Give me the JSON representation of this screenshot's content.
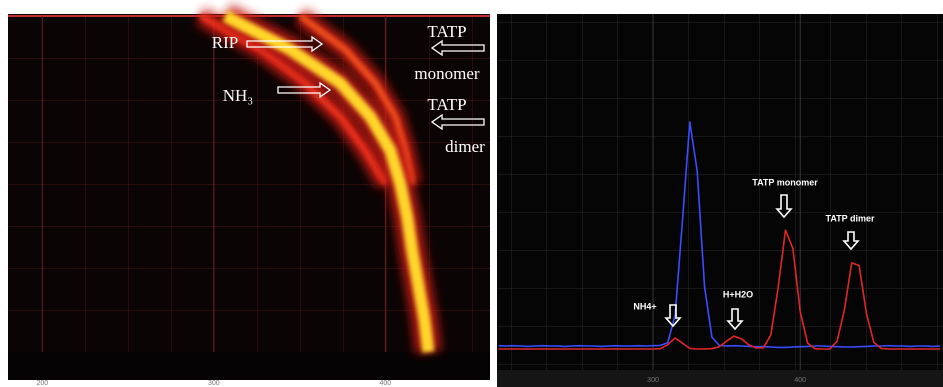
{
  "chart_data": [
    {
      "type": "heatmap",
      "xlim": [
        180,
        461
      ],
      "ylim": [
        0,
        100
      ],
      "xticks": [
        200,
        300,
        400
      ],
      "grid": true,
      "y": [
        0,
        10,
        20,
        30,
        40,
        50,
        60,
        70,
        80,
        90,
        100
      ],
      "series": [
        {
          "color": "#e8301c",
          "x": [
            292.1,
            327.1,
            353.4,
            373.8,
            388.3,
            400.0,
            null,
            null,
            null,
            null,
            null
          ]
        },
        {
          "color": "#f0501c",
          "x": [
            350.4,
            376.7,
            394.2,
            405.8,
            411.7,
            415.7,
            null,
            null,
            null,
            null,
            null
          ]
        },
        {
          "color": "#ffd62a",
          "x": [
            306.7,
            344.6,
            373.8,
            391.3,
            402.9,
            408.7,
            412.8,
            415.7,
            419.2,
            422.7,
            425.1
          ]
        }
      ],
      "annotations": [
        "RIP",
        "NH₃",
        "TATP",
        "monomer",
        "TATP",
        "dimer"
      ]
    },
    {
      "type": "line",
      "xlim": [
        194,
        497
      ],
      "ylim": [
        0,
        100
      ],
      "xticks": [
        300,
        400
      ],
      "grid": true,
      "x": [
        195,
        200,
        205,
        210,
        215,
        220,
        225,
        230,
        235,
        240,
        245,
        250,
        255,
        260,
        265,
        270,
        275,
        280,
        285,
        290,
        295,
        300,
        305,
        310,
        315,
        320,
        325,
        330,
        335,
        340,
        345,
        350,
        355,
        360,
        365,
        370,
        375,
        380,
        385,
        390,
        395,
        400,
        405,
        410,
        415,
        420,
        425,
        430,
        435,
        440,
        445,
        450,
        455,
        460,
        465,
        470,
        475,
        480,
        485,
        490,
        495
      ],
      "series": [
        {
          "color": "#3b4dff",
          "values": [
            1.3,
            1.2,
            1.3,
            1.2,
            1.1,
            1.2,
            1.3,
            1.2,
            1.2,
            1.1,
            1.2,
            1.3,
            1.2,
            1.2,
            1.1,
            1.2,
            1.3,
            1.2,
            1.2,
            1.3,
            1.2,
            1.3,
            1.4,
            2.2,
            10.5,
            39.3,
            69.1,
            54.2,
            19.3,
            3.9,
            1.4,
            1.2,
            1.3,
            1.2,
            1.1,
            1.0,
            1.0,
            0.9,
            0.8,
            0.8,
            0.9,
            1.0,
            1.1,
            1.2,
            1.2,
            1.1,
            1.0,
            0.9,
            0.9,
            1.0,
            1.1,
            1.2,
            1.2,
            1.3,
            1.2,
            1.2,
            1.1,
            1.2,
            1.2,
            1.1,
            1.2
          ]
        },
        {
          "color": "#e0262c",
          "values": [
            0.3,
            0.3,
            0.3,
            0.3,
            0.3,
            0.3,
            0.3,
            0.3,
            0.3,
            0.3,
            0.3,
            0.3,
            0.3,
            0.3,
            0.3,
            0.3,
            0.3,
            0.3,
            0.3,
            0.3,
            0.3,
            0.3,
            0.4,
            1.6,
            3.6,
            2.1,
            0.5,
            0.3,
            0.3,
            0.4,
            1.0,
            2.7,
            4.2,
            3.4,
            1.6,
            0.6,
            0.7,
            4.5,
            18.8,
            36.3,
            30.8,
            11.6,
            2.1,
            0.4,
            0.3,
            0.3,
            2.6,
            12.1,
            26.4,
            25.6,
            11.0,
            2.3,
            0.5,
            0.3,
            0.3,
            0.3,
            0.3,
            0.3,
            0.3,
            0.3,
            0.3
          ]
        }
      ],
      "annotations": [
        "NH4+",
        "H+H2O",
        "TATP monomer",
        "TATP dimer"
      ]
    }
  ]
}
